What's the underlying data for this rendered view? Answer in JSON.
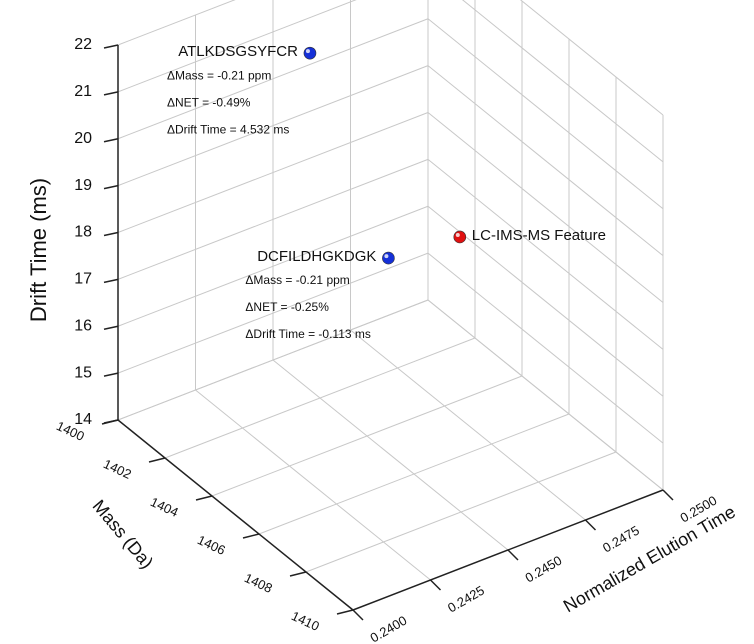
{
  "chart_data": {
    "type": "scatter3d",
    "ylabel": "Drift Time (ms)",
    "xlabel": "Mass (Da)",
    "zlabel": "Normalized Elution Time",
    "xlim": [
      1400,
      1410
    ],
    "xticks": [
      1400,
      1402,
      1404,
      1406,
      1408,
      1410
    ],
    "ylim": [
      14,
      22
    ],
    "yticks": [
      14,
      15,
      16,
      17,
      18,
      19,
      20,
      21,
      22
    ],
    "zlim": [
      0.24,
      0.25
    ],
    "zticks": [
      {
        "value": 0.24,
        "label": "0.2400"
      },
      {
        "value": 0.2425,
        "label": "0.2425"
      },
      {
        "value": 0.245,
        "label": "0.2450"
      },
      {
        "value": 0.2475,
        "label": "0.2475"
      },
      {
        "value": 0.25,
        "label": "0.2500"
      }
    ],
    "grid": true,
    "series": [
      {
        "name": "ATLKDSGSYFCR",
        "color": "#1530d8",
        "label_side": "left",
        "x": [
          1402.1
        ],
        "y": [
          21.5
        ],
        "z": [
          0.2446
        ],
        "annotations": [
          "ΔMass = -0.21 ppm",
          "ΔNET = -0.49%",
          "ΔDrift Time = 4.532 ms"
        ]
      },
      {
        "name": "LC-IMS-MS Feature",
        "color": "#e01010",
        "label_side": "right",
        "x": [
          1403.2
        ],
        "y": [
          17.0
        ],
        "z": [
          0.2486
        ],
        "annotations": []
      },
      {
        "name": "DCFILDHGKDGK",
        "color": "#1530d8",
        "label_side": "left",
        "x": [
          1402.8
        ],
        "y": [
          16.9
        ],
        "z": [
          0.2466
        ],
        "annotations": [
          "ΔMass = -0.21 ppm",
          "ΔNET = -0.25%",
          "ΔDrift Time = -0.113 ms"
        ]
      }
    ]
  }
}
